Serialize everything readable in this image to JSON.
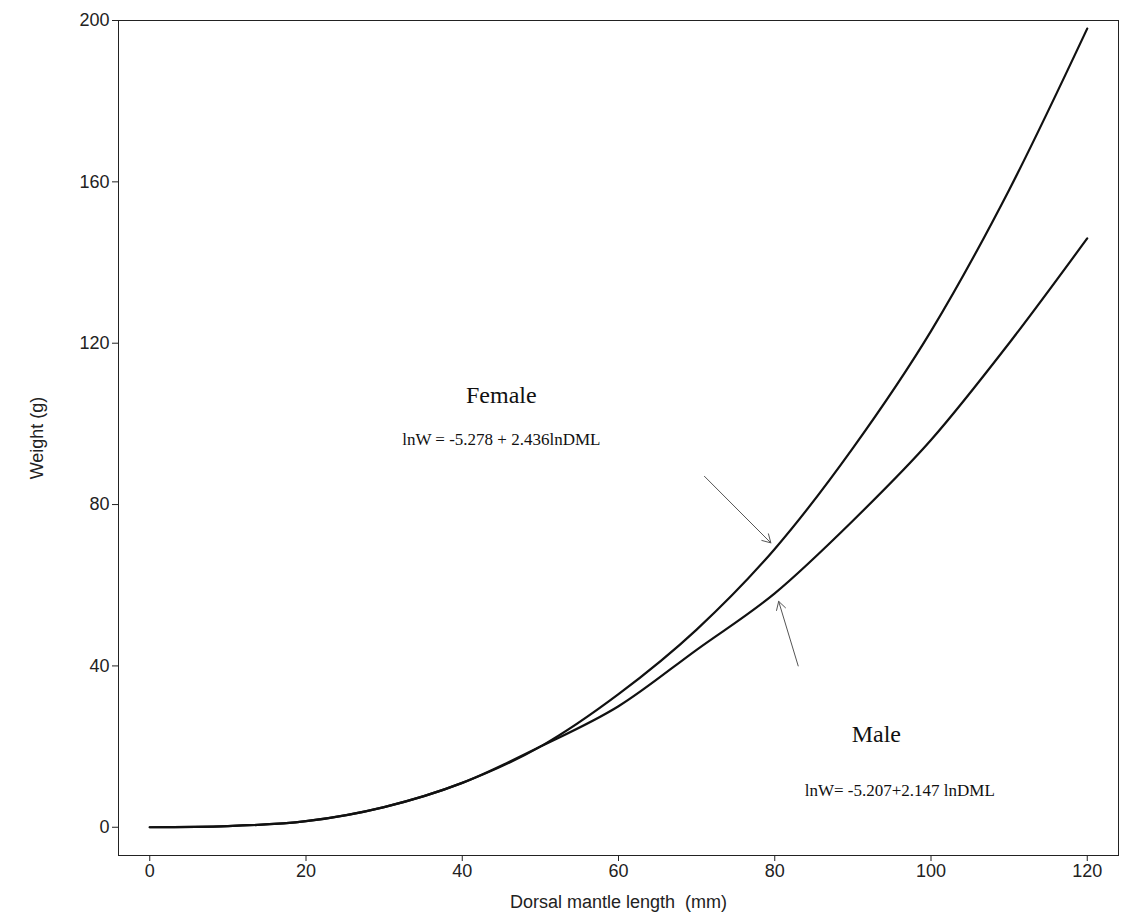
{
  "chart_data": {
    "type": "line",
    "x_label": "Dorsal mantle length  (mm)",
    "y_label": "Weight (g)",
    "x": [
      0,
      10,
      20,
      30,
      40,
      50,
      60,
      70,
      80,
      90,
      100,
      110,
      120
    ],
    "series": [
      {
        "name": "Female",
        "color": "#111111",
        "arrow_at": 80,
        "values": [
          0,
          0.3,
          1.5,
          5,
          11,
          20,
          33,
          49,
          69,
          94,
          123,
          158,
          198
        ]
      },
      {
        "name": "Male",
        "color": "#111111",
        "arrow_at": 80,
        "values": [
          0,
          0.3,
          1.5,
          5,
          11,
          20,
          30,
          44,
          58,
          76,
          96,
          120,
          146
        ]
      }
    ],
    "annotations": [
      {
        "text": "Female",
        "x": 45,
        "y": 107
      },
      {
        "text": "lnW = -5.278 + 2.436lnDML",
        "x": 45,
        "y": 96
      },
      {
        "text": "Male",
        "x": 93,
        "y": 23
      },
      {
        "text": "lnW= -5.207+2.147 lnDML",
        "x": 96,
        "y": 9
      }
    ],
    "xlim": [
      -4,
      124
    ],
    "ylim": [
      -7,
      200
    ],
    "xticks": [
      0,
      20,
      40,
      60,
      80,
      100,
      120
    ],
    "yticks": [
      0,
      40,
      80,
      120,
      160,
      200
    ],
    "grid": false
  }
}
